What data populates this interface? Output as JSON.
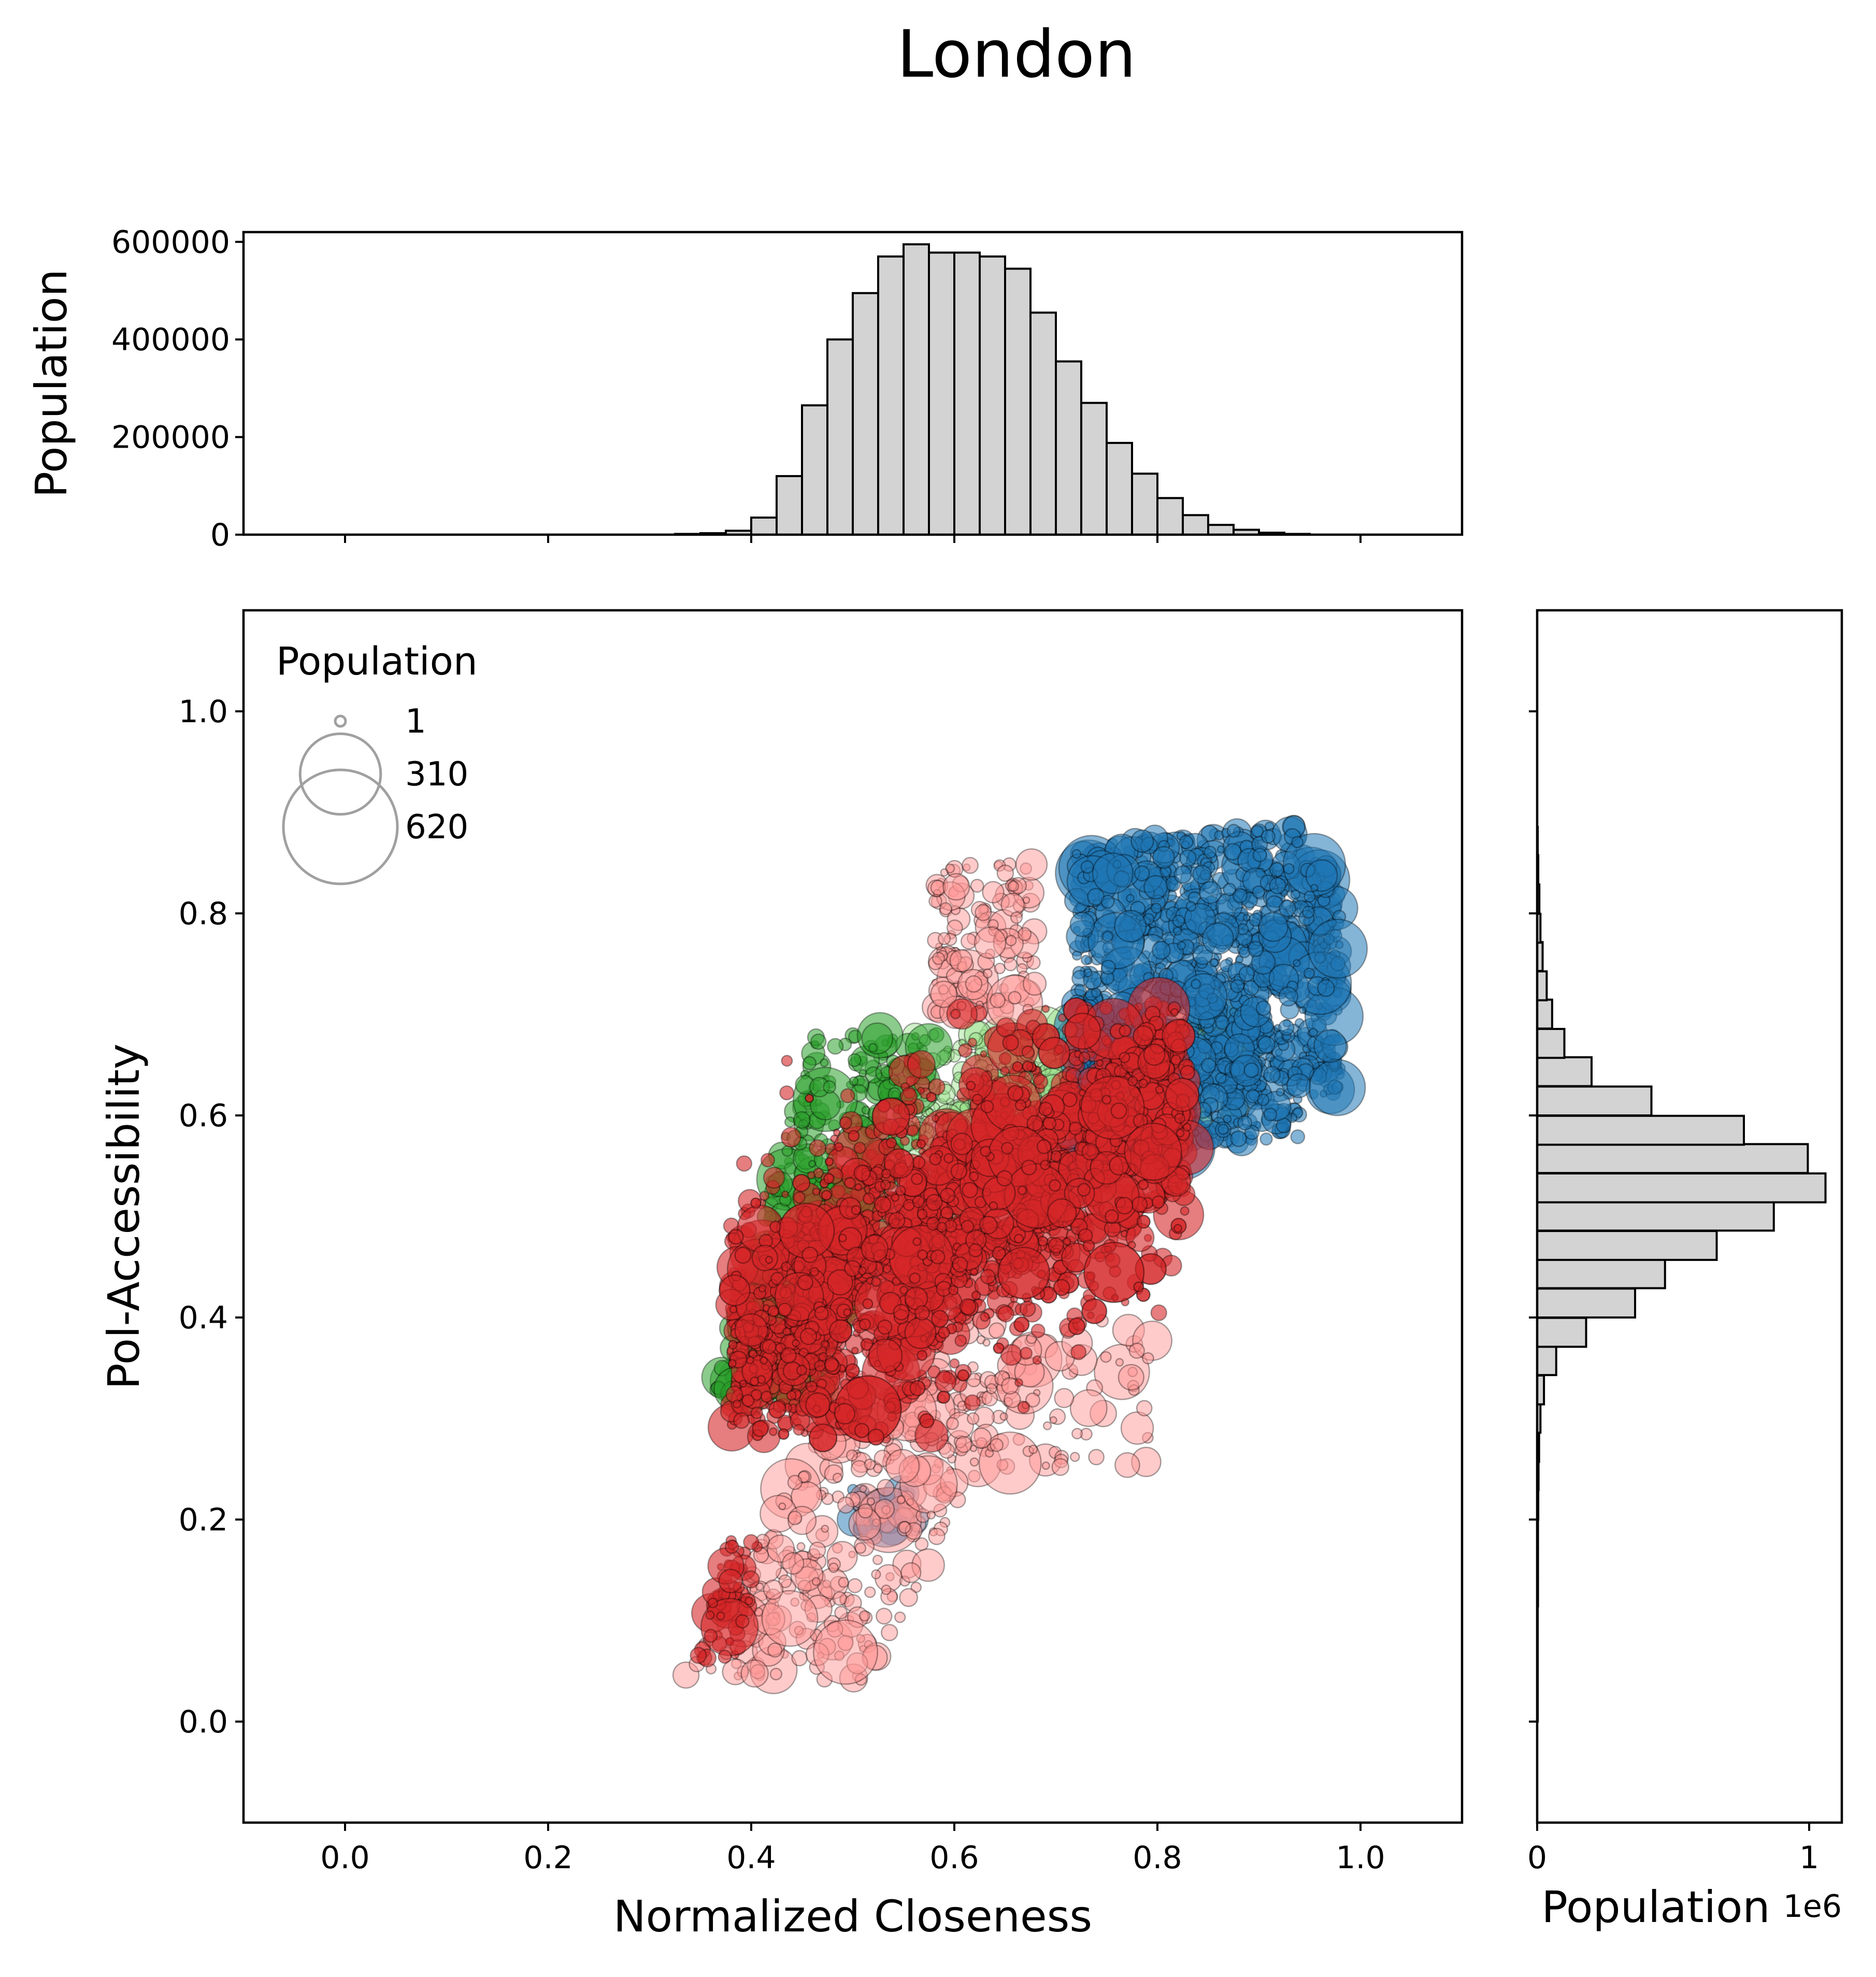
{
  "chart_data": {
    "title": "London",
    "colors": {
      "histogram_fill": "#d3d3d3",
      "edge": "#000000",
      "legend_marker": "#a0a0a0",
      "clusters": [
        "#1f77b4",
        "#2ca02c",
        "#98df8a",
        "#ff9896",
        "#d62728"
      ]
    },
    "scatter": {
      "type": "scatter",
      "xlabel": "Normalized Closeness",
      "ylabel": "Pol-Accessibility",
      "xlim": [
        -0.1,
        1.1
      ],
      "ylim": [
        -0.1,
        1.1
      ],
      "xticks": [
        "0.0",
        "0.2",
        "0.4",
        "0.6",
        "0.8",
        "1.0"
      ],
      "yticks": [
        "0.0",
        "0.2",
        "0.4",
        "0.6",
        "0.8",
        "1.0"
      ],
      "size_legend": {
        "title": "Population",
        "location": "upper left",
        "entries": [
          {
            "label": "1",
            "value": 1
          },
          {
            "label": "310",
            "value": 310
          },
          {
            "label": "620",
            "value": 620
          }
        ]
      },
      "clusters": [
        {
          "color": "#1f77b4",
          "x_range": [
            0.72,
            0.98
          ],
          "y_range": [
            0.58,
            0.89
          ]
        },
        {
          "color": "#98df8a",
          "x_range": [
            0.55,
            0.9
          ],
          "y_range": [
            0.4,
            0.69
          ]
        },
        {
          "color": "#2ca02c",
          "x_range": [
            0.34,
            0.6
          ],
          "y_range": [
            0.3,
            0.68
          ]
        },
        {
          "color": "#ff9896",
          "x_range": [
            0.31,
            0.7
          ],
          "y_range": [
            0.03,
            0.85
          ]
        },
        {
          "color": "#d62728",
          "x_range": [
            0.36,
            0.86
          ],
          "y_range": [
            0.28,
            0.71
          ]
        }
      ]
    },
    "top_histogram": {
      "type": "bar",
      "ylabel": "Population",
      "ylim": [
        0,
        620000
      ],
      "yticks": [
        "0",
        "200000",
        "400000",
        "600000"
      ],
      "bin_width": 0.025,
      "bin_starts": [
        0.325,
        0.35,
        0.375,
        0.4,
        0.425,
        0.45,
        0.475,
        0.5,
        0.525,
        0.55,
        0.575,
        0.6,
        0.625,
        0.65,
        0.675,
        0.7,
        0.725,
        0.75,
        0.775,
        0.8,
        0.825,
        0.85,
        0.875,
        0.9,
        0.925
      ],
      "values": [
        1500,
        3000,
        8000,
        35000,
        120000,
        265000,
        400000,
        495000,
        570000,
        595000,
        578000,
        578000,
        570000,
        545000,
        455000,
        355000,
        270000,
        188000,
        125000,
        75000,
        40000,
        20000,
        10000,
        4000,
        1500
      ]
    },
    "right_histogram": {
      "type": "bar",
      "orientation": "horizontal",
      "xlabel": "Population",
      "offset_text": "1e6",
      "xlim": [
        0,
        1.12
      ],
      "xticks": [
        "0",
        "1"
      ],
      "bin_width": 0.0286,
      "bin_starts": [
        0.0,
        0.0286,
        0.0571,
        0.0857,
        0.114,
        0.143,
        0.171,
        0.2,
        0.229,
        0.257,
        0.286,
        0.314,
        0.343,
        0.371,
        0.4,
        0.429,
        0.457,
        0.486,
        0.514,
        0.543,
        0.571,
        0.6,
        0.629,
        0.657,
        0.686,
        0.714,
        0.743,
        0.771,
        0.8,
        0.829,
        0.857
      ],
      "values": [
        0.002,
        0.002,
        0.002,
        0.002,
        0.003,
        0.003,
        0.003,
        0.004,
        0.005,
        0.007,
        0.012,
        0.025,
        0.07,
        0.18,
        0.36,
        0.47,
        0.66,
        0.87,
        1.06,
        0.995,
        0.76,
        0.42,
        0.2,
        0.1,
        0.055,
        0.035,
        0.02,
        0.012,
        0.008,
        0.004,
        0.002
      ]
    }
  }
}
